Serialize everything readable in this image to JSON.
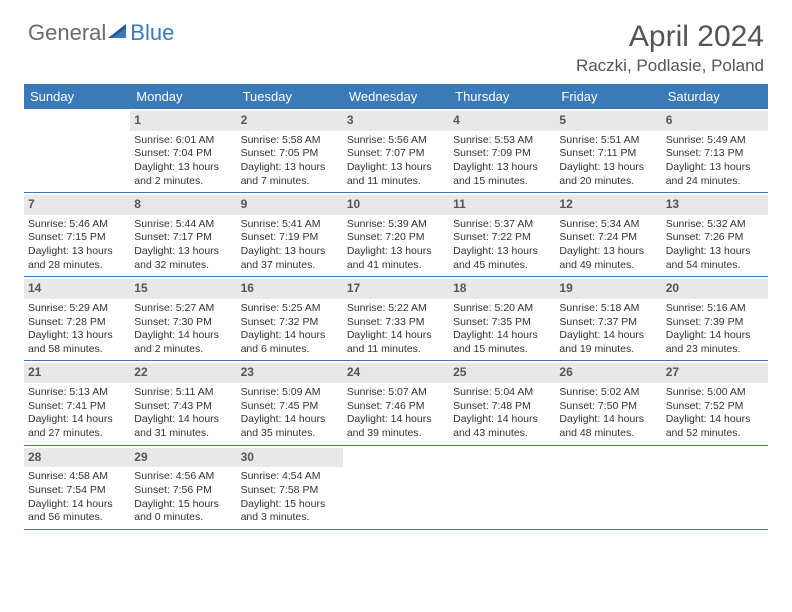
{
  "logo": {
    "general": "General",
    "blue": "Blue"
  },
  "title": "April 2024",
  "location": "Raczki, Podlasie, Poland",
  "colors": {
    "header_bg": "#3a7ab8",
    "header_text": "#ffffff",
    "day_bg": "#e8e8e8",
    "text": "#333333",
    "border": "#3a7ab8"
  },
  "dayHeaders": [
    "Sunday",
    "Monday",
    "Tuesday",
    "Wednesday",
    "Thursday",
    "Friday",
    "Saturday"
  ],
  "weeks": [
    [
      {
        "num": "",
        "sunrise": "",
        "sunset": "",
        "daylight1": "",
        "daylight2": ""
      },
      {
        "num": "1",
        "sunrise": "Sunrise: 6:01 AM",
        "sunset": "Sunset: 7:04 PM",
        "daylight1": "Daylight: 13 hours",
        "daylight2": "and 2 minutes."
      },
      {
        "num": "2",
        "sunrise": "Sunrise: 5:58 AM",
        "sunset": "Sunset: 7:05 PM",
        "daylight1": "Daylight: 13 hours",
        "daylight2": "and 7 minutes."
      },
      {
        "num": "3",
        "sunrise": "Sunrise: 5:56 AM",
        "sunset": "Sunset: 7:07 PM",
        "daylight1": "Daylight: 13 hours",
        "daylight2": "and 11 minutes."
      },
      {
        "num": "4",
        "sunrise": "Sunrise: 5:53 AM",
        "sunset": "Sunset: 7:09 PM",
        "daylight1": "Daylight: 13 hours",
        "daylight2": "and 15 minutes."
      },
      {
        "num": "5",
        "sunrise": "Sunrise: 5:51 AM",
        "sunset": "Sunset: 7:11 PM",
        "daylight1": "Daylight: 13 hours",
        "daylight2": "and 20 minutes."
      },
      {
        "num": "6",
        "sunrise": "Sunrise: 5:49 AM",
        "sunset": "Sunset: 7:13 PM",
        "daylight1": "Daylight: 13 hours",
        "daylight2": "and 24 minutes."
      }
    ],
    [
      {
        "num": "7",
        "sunrise": "Sunrise: 5:46 AM",
        "sunset": "Sunset: 7:15 PM",
        "daylight1": "Daylight: 13 hours",
        "daylight2": "and 28 minutes."
      },
      {
        "num": "8",
        "sunrise": "Sunrise: 5:44 AM",
        "sunset": "Sunset: 7:17 PM",
        "daylight1": "Daylight: 13 hours",
        "daylight2": "and 32 minutes."
      },
      {
        "num": "9",
        "sunrise": "Sunrise: 5:41 AM",
        "sunset": "Sunset: 7:19 PM",
        "daylight1": "Daylight: 13 hours",
        "daylight2": "and 37 minutes."
      },
      {
        "num": "10",
        "sunrise": "Sunrise: 5:39 AM",
        "sunset": "Sunset: 7:20 PM",
        "daylight1": "Daylight: 13 hours",
        "daylight2": "and 41 minutes."
      },
      {
        "num": "11",
        "sunrise": "Sunrise: 5:37 AM",
        "sunset": "Sunset: 7:22 PM",
        "daylight1": "Daylight: 13 hours",
        "daylight2": "and 45 minutes."
      },
      {
        "num": "12",
        "sunrise": "Sunrise: 5:34 AM",
        "sunset": "Sunset: 7:24 PM",
        "daylight1": "Daylight: 13 hours",
        "daylight2": "and 49 minutes."
      },
      {
        "num": "13",
        "sunrise": "Sunrise: 5:32 AM",
        "sunset": "Sunset: 7:26 PM",
        "daylight1": "Daylight: 13 hours",
        "daylight2": "and 54 minutes."
      }
    ],
    [
      {
        "num": "14",
        "sunrise": "Sunrise: 5:29 AM",
        "sunset": "Sunset: 7:28 PM",
        "daylight1": "Daylight: 13 hours",
        "daylight2": "and 58 minutes."
      },
      {
        "num": "15",
        "sunrise": "Sunrise: 5:27 AM",
        "sunset": "Sunset: 7:30 PM",
        "daylight1": "Daylight: 14 hours",
        "daylight2": "and 2 minutes."
      },
      {
        "num": "16",
        "sunrise": "Sunrise: 5:25 AM",
        "sunset": "Sunset: 7:32 PM",
        "daylight1": "Daylight: 14 hours",
        "daylight2": "and 6 minutes."
      },
      {
        "num": "17",
        "sunrise": "Sunrise: 5:22 AM",
        "sunset": "Sunset: 7:33 PM",
        "daylight1": "Daylight: 14 hours",
        "daylight2": "and 11 minutes."
      },
      {
        "num": "18",
        "sunrise": "Sunrise: 5:20 AM",
        "sunset": "Sunset: 7:35 PM",
        "daylight1": "Daylight: 14 hours",
        "daylight2": "and 15 minutes."
      },
      {
        "num": "19",
        "sunrise": "Sunrise: 5:18 AM",
        "sunset": "Sunset: 7:37 PM",
        "daylight1": "Daylight: 14 hours",
        "daylight2": "and 19 minutes."
      },
      {
        "num": "20",
        "sunrise": "Sunrise: 5:16 AM",
        "sunset": "Sunset: 7:39 PM",
        "daylight1": "Daylight: 14 hours",
        "daylight2": "and 23 minutes."
      }
    ],
    [
      {
        "num": "21",
        "sunrise": "Sunrise: 5:13 AM",
        "sunset": "Sunset: 7:41 PM",
        "daylight1": "Daylight: 14 hours",
        "daylight2": "and 27 minutes."
      },
      {
        "num": "22",
        "sunrise": "Sunrise: 5:11 AM",
        "sunset": "Sunset: 7:43 PM",
        "daylight1": "Daylight: 14 hours",
        "daylight2": "and 31 minutes."
      },
      {
        "num": "23",
        "sunrise": "Sunrise: 5:09 AM",
        "sunset": "Sunset: 7:45 PM",
        "daylight1": "Daylight: 14 hours",
        "daylight2": "and 35 minutes."
      },
      {
        "num": "24",
        "sunrise": "Sunrise: 5:07 AM",
        "sunset": "Sunset: 7:46 PM",
        "daylight1": "Daylight: 14 hours",
        "daylight2": "and 39 minutes."
      },
      {
        "num": "25",
        "sunrise": "Sunrise: 5:04 AM",
        "sunset": "Sunset: 7:48 PM",
        "daylight1": "Daylight: 14 hours",
        "daylight2": "and 43 minutes."
      },
      {
        "num": "26",
        "sunrise": "Sunrise: 5:02 AM",
        "sunset": "Sunset: 7:50 PM",
        "daylight1": "Daylight: 14 hours",
        "daylight2": "and 48 minutes."
      },
      {
        "num": "27",
        "sunrise": "Sunrise: 5:00 AM",
        "sunset": "Sunset: 7:52 PM",
        "daylight1": "Daylight: 14 hours",
        "daylight2": "and 52 minutes."
      }
    ],
    [
      {
        "num": "28",
        "sunrise": "Sunrise: 4:58 AM",
        "sunset": "Sunset: 7:54 PM",
        "daylight1": "Daylight: 14 hours",
        "daylight2": "and 56 minutes."
      },
      {
        "num": "29",
        "sunrise": "Sunrise: 4:56 AM",
        "sunset": "Sunset: 7:56 PM",
        "daylight1": "Daylight: 15 hours",
        "daylight2": "and 0 minutes."
      },
      {
        "num": "30",
        "sunrise": "Sunrise: 4:54 AM",
        "sunset": "Sunset: 7:58 PM",
        "daylight1": "Daylight: 15 hours",
        "daylight2": "and 3 minutes."
      },
      {
        "num": "",
        "sunrise": "",
        "sunset": "",
        "daylight1": "",
        "daylight2": ""
      },
      {
        "num": "",
        "sunrise": "",
        "sunset": "",
        "daylight1": "",
        "daylight2": ""
      },
      {
        "num": "",
        "sunrise": "",
        "sunset": "",
        "daylight1": "",
        "daylight2": ""
      },
      {
        "num": "",
        "sunrise": "",
        "sunset": "",
        "daylight1": "",
        "daylight2": ""
      }
    ]
  ]
}
